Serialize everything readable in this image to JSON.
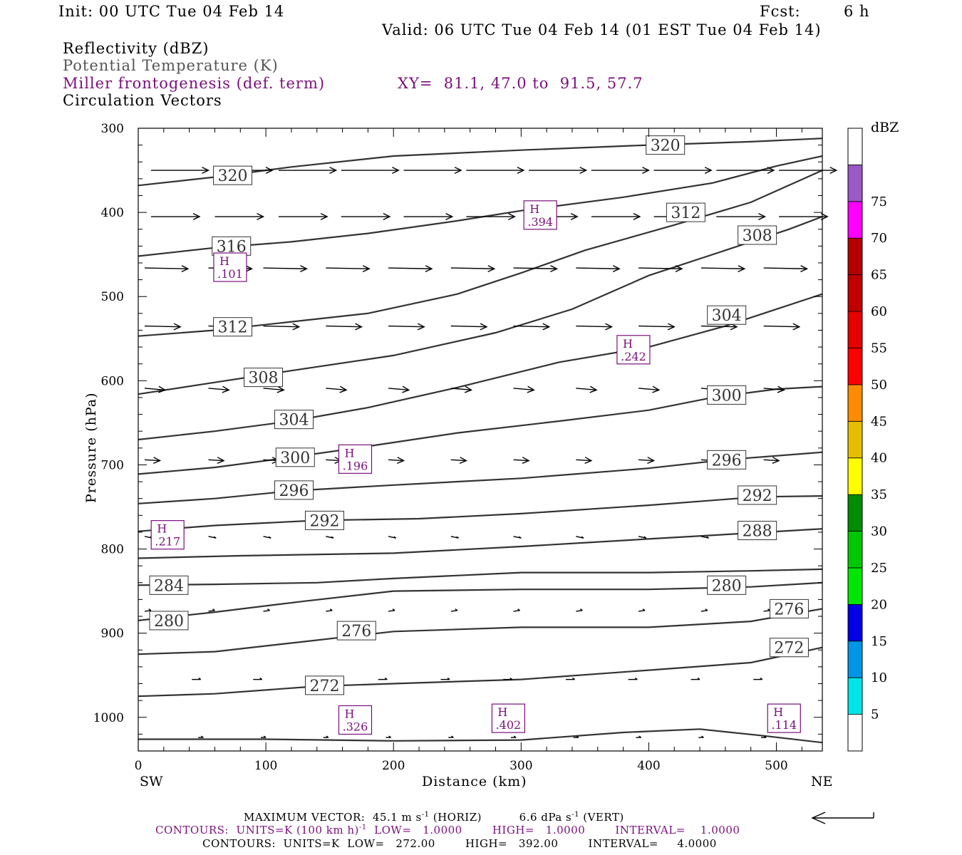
{
  "header": {
    "init": "Init: 00 UTC Tue 04 Feb 14",
    "fcst_label": "Fcst:",
    "fcst_value": "6 h",
    "valid": "Valid: 06 UTC Tue 04 Feb 14 (01 EST Tue 04 Feb 14)",
    "field1": "Reflectivity (dBZ)",
    "field2": "Potential Temperature (K)",
    "field3": "Miller frontogenesis (def. term)",
    "xy": "XY=  81.1, 47.0 to  91.5, 57.7",
    "field4": "Circulation Vectors"
  },
  "colors": {
    "purple": "#7a0f7a",
    "contour": "#333333",
    "vector": "#000000"
  },
  "chart_data": {
    "type": "cross-section",
    "xlabel": "Distance (km)",
    "ylabel": "Pressure (hPa)",
    "xlim": [
      0,
      536
    ],
    "ylim": [
      300,
      1040
    ],
    "xticks": [
      0,
      100,
      200,
      300,
      400,
      500
    ],
    "yticks": [
      300,
      400,
      500,
      600,
      700,
      800,
      900,
      1000
    ],
    "left_end_label": "SW",
    "right_end_label": "NE",
    "theta_contours": [
      {
        "value": "320",
        "points": [
          [
            0,
            368
          ],
          [
            60,
            358
          ],
          [
            120,
            346
          ],
          [
            200,
            333
          ],
          [
            300,
            326
          ],
          [
            400,
            320
          ],
          [
            480,
            316
          ],
          [
            536,
            312
          ]
        ],
        "labels": [
          [
            74,
            356
          ],
          [
            413,
            320
          ]
        ]
      },
      {
        "value": "316",
        "points": [
          [
            0,
            452
          ],
          [
            60,
            442
          ],
          [
            120,
            435
          ],
          [
            180,
            425
          ],
          [
            250,
            410
          ],
          [
            300,
            398
          ],
          [
            380,
            382
          ],
          [
            450,
            365
          ],
          [
            500,
            345
          ],
          [
            536,
            333
          ]
        ],
        "labels": [
          [
            73,
            440
          ]
        ]
      },
      {
        "value": "312",
        "points": [
          [
            0,
            547
          ],
          [
            60,
            540
          ],
          [
            120,
            530
          ],
          [
            180,
            520
          ],
          [
            250,
            497
          ],
          [
            300,
            472
          ],
          [
            350,
            445
          ],
          [
            420,
            415
          ],
          [
            480,
            388
          ],
          [
            536,
            350
          ]
        ],
        "labels": [
          [
            74,
            536
          ],
          [
            429,
            400
          ]
        ]
      },
      {
        "value": "308",
        "points": [
          [
            0,
            616
          ],
          [
            60,
            602
          ],
          [
            120,
            588
          ],
          [
            200,
            570
          ],
          [
            280,
            543
          ],
          [
            340,
            515
          ],
          [
            400,
            475
          ],
          [
            460,
            445
          ],
          [
            510,
            420
          ],
          [
            536,
            405
          ]
        ],
        "labels": [
          [
            98,
            596
          ],
          [
            485,
            427
          ]
        ]
      },
      {
        "value": "304",
        "points": [
          [
            0,
            670
          ],
          [
            60,
            660
          ],
          [
            120,
            648
          ],
          [
            180,
            632
          ],
          [
            250,
            608
          ],
          [
            330,
            578
          ],
          [
            400,
            560
          ],
          [
            460,
            535
          ],
          [
            500,
            515
          ],
          [
            536,
            497
          ]
        ],
        "labels": [
          [
            122,
            646
          ],
          [
            461,
            522
          ]
        ]
      },
      {
        "value": "300",
        "points": [
          [
            0,
            711
          ],
          [
            60,
            703
          ],
          [
            120,
            691
          ],
          [
            180,
            678
          ],
          [
            250,
            662
          ],
          [
            330,
            648
          ],
          [
            400,
            635
          ],
          [
            450,
            620
          ],
          [
            500,
            610
          ],
          [
            536,
            607
          ]
        ],
        "labels": [
          [
            123,
            691
          ],
          [
            461,
            617
          ]
        ]
      },
      {
        "value": "296",
        "points": [
          [
            0,
            746
          ],
          [
            60,
            740
          ],
          [
            120,
            731
          ],
          [
            200,
            724
          ],
          [
            300,
            716
          ],
          [
            400,
            704
          ],
          [
            460,
            694
          ],
          [
            536,
            685
          ]
        ],
        "labels": [
          [
            122,
            730
          ],
          [
            461,
            694
          ]
        ]
      },
      {
        "value": "292",
        "points": [
          [
            0,
            779
          ],
          [
            60,
            772
          ],
          [
            140,
            766
          ],
          [
            220,
            764
          ],
          [
            300,
            758
          ],
          [
            400,
            748
          ],
          [
            486,
            738
          ],
          [
            536,
            737
          ]
        ],
        "labels": [
          [
            146,
            766
          ],
          [
            485,
            736
          ]
        ]
      },
      {
        "value": "288",
        "points": [
          [
            0,
            811
          ],
          [
            80,
            808
          ],
          [
            200,
            805
          ],
          [
            300,
            797
          ],
          [
            400,
            788
          ],
          [
            480,
            781
          ],
          [
            536,
            776
          ]
        ],
        "labels": [
          [
            485,
            778
          ]
        ]
      },
      {
        "value": "284",
        "points": [
          [
            0,
            843
          ],
          [
            60,
            842
          ],
          [
            140,
            840
          ],
          [
            200,
            835
          ],
          [
            300,
            828
          ],
          [
            400,
            828
          ],
          [
            480,
            826
          ],
          [
            536,
            824
          ]
        ],
        "labels": [
          [
            24,
            843
          ]
        ]
      },
      {
        "value": "280",
        "points": [
          [
            0,
            885
          ],
          [
            60,
            875
          ],
          [
            130,
            862
          ],
          [
            200,
            850
          ],
          [
            300,
            848
          ],
          [
            400,
            848
          ],
          [
            480,
            845
          ],
          [
            536,
            840
          ]
        ],
        "labels": [
          [
            24,
            885
          ],
          [
            461,
            843
          ]
        ]
      },
      {
        "value": "276",
        "points": [
          [
            0,
            925
          ],
          [
            60,
            922
          ],
          [
            130,
            910
          ],
          [
            200,
            898
          ],
          [
            300,
            893
          ],
          [
            400,
            893
          ],
          [
            480,
            886
          ],
          [
            536,
            871
          ]
        ],
        "labels": [
          [
            171,
            897
          ],
          [
            510,
            871
          ]
        ]
      },
      {
        "value": "272",
        "points": [
          [
            0,
            975
          ],
          [
            60,
            972
          ],
          [
            140,
            963
          ],
          [
            200,
            960
          ],
          [
            300,
            955
          ],
          [
            400,
            944
          ],
          [
            480,
            935
          ],
          [
            536,
            917
          ]
        ],
        "labels": [
          [
            146,
            962
          ],
          [
            510,
            917
          ]
        ]
      },
      {
        "value": "sfc",
        "points": [
          [
            0,
            1026
          ],
          [
            100,
            1026
          ],
          [
            200,
            1028
          ],
          [
            300,
            1027
          ],
          [
            380,
            1018
          ],
          [
            440,
            1014
          ],
          [
            490,
            1022
          ],
          [
            536,
            1030
          ]
        ],
        "labels": []
      }
    ],
    "frontogenesis_highs": [
      {
        "letter": "H",
        "value": ".101",
        "x": 72,
        "p": 466
      },
      {
        "letter": "H",
        "value": ".394",
        "x": 315,
        "p": 404
      },
      {
        "letter": "H",
        "value": ".242",
        "x": 388,
        "p": 564
      },
      {
        "letter": "H",
        "value": ".196",
        "x": 170,
        "p": 694
      },
      {
        "letter": "H",
        "value": ".217",
        "x": 23,
        "p": 784
      },
      {
        "letter": "H",
        "value": ".326",
        "x": 170,
        "p": 1004
      },
      {
        "letter": "H",
        "value": ".402",
        "x": 290,
        "p": 1002
      },
      {
        "letter": "H",
        "value": ".114",
        "x": 506,
        "p": 1002
      }
    ],
    "vector_rows": [
      {
        "p": 350,
        "len": 45,
        "dp": 0,
        "xs": [
          10,
          60,
          110,
          159,
          208,
          257,
          306,
          355,
          404,
          453,
          502
        ]
      },
      {
        "p": 405,
        "len": 38,
        "dp": 0,
        "xs": [
          10,
          60,
          110,
          159,
          208,
          257,
          306,
          355,
          404,
          453,
          502
        ]
      },
      {
        "p": 466,
        "len": 34,
        "dp": 1,
        "xs": [
          5,
          55,
          98,
          147,
          196,
          245,
          294,
          343,
          392,
          441,
          490
        ]
      },
      {
        "p": 535,
        "len": 28,
        "dp": 1,
        "xs": [
          5,
          55,
          98,
          147,
          196,
          245,
          294,
          343,
          392,
          441,
          490
        ]
      },
      {
        "p": 609,
        "len": 16,
        "dp": 2,
        "xs": [
          5,
          55,
          98,
          147,
          196,
          245,
          294,
          343,
          392,
          441,
          490
        ]
      },
      {
        "p": 694,
        "len": 12,
        "dp": 1,
        "xs": [
          5,
          55,
          98,
          147,
          196,
          245,
          294,
          343,
          392,
          441,
          490
        ]
      },
      {
        "p": 785,
        "len": 6,
        "dp": 2,
        "xs": [
          5,
          55,
          98,
          147,
          196,
          245,
          294,
          343,
          392,
          441,
          490
        ]
      },
      {
        "p": 874,
        "len": 5,
        "dp": -1,
        "xs": [
          5,
          55,
          98,
          147,
          196,
          245,
          294,
          343,
          392,
          441,
          490
        ]
      },
      {
        "p": 955,
        "len": 7,
        "dp": 0,
        "xs": [
          42,
          90,
          139,
          188,
          237,
          286,
          335,
          384,
          433,
          482
        ]
      },
      {
        "p": 1024,
        "len": 4,
        "dp": 0,
        "xs": [
          47,
          96,
          145,
          194,
          243,
          292,
          341,
          390,
          439,
          488
        ]
      }
    ],
    "dbz_scale": {
      "label": "dBZ",
      "levels": [
        "5",
        "10",
        "15",
        "20",
        "25",
        "30",
        "35",
        "40",
        "45",
        "50",
        "55",
        "60",
        "65",
        "70",
        "75"
      ],
      "colors": [
        "#ffffff",
        "#00e6e6",
        "#0096e6",
        "#0000e6",
        "#00e600",
        "#00c800",
        "#008c00",
        "#ffff00",
        "#e6be00",
        "#ff8c00",
        "#ff0000",
        "#e60000",
        "#c00000",
        "#b40000",
        "#ff00ff",
        "#9b59c6",
        "#ffffff"
      ]
    }
  },
  "footer": {
    "line1_a": "MAXIMUM VECTOR:  45.1 m s",
    "line1_b": " (HORIZ)          6.6 dPa s",
    "line1_c": " (VERT)",
    "sup": "-1",
    "line2_a": "CONTOURS:  UNITS=K (100 km h)",
    "line2_b": "  LOW=   1.0000        HIGH=   1.0000        INTERVAL=    1.0000",
    "line3": "CONTOURS:  UNITS=K  LOW=   272.00        HIGH=   392.00        INTERVAL=     4.0000"
  }
}
